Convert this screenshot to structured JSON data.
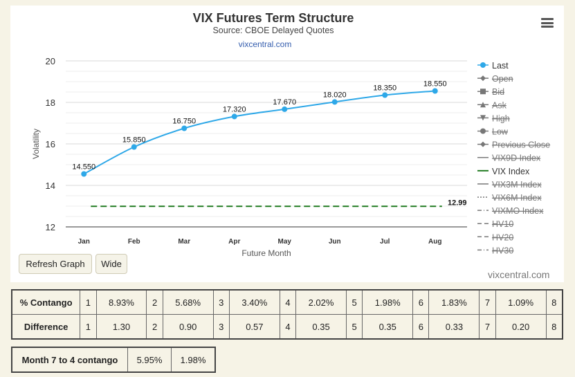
{
  "chart_data": {
    "type": "line",
    "title": "VIX Futures Term Structure",
    "subtitle": "Source: CBOE Delayed Quotes",
    "link": "vixcentral.com",
    "xlabel": "Future Month",
    "ylabel": "Volatility",
    "categories": [
      "Jan",
      "Feb",
      "Mar",
      "Apr",
      "May",
      "Jun",
      "Jul",
      "Aug"
    ],
    "ylim": [
      12,
      20
    ],
    "yticks": [
      "12",
      "14",
      "16",
      "18",
      "20"
    ],
    "series": [
      {
        "name": "Last",
        "values": [
          14.55,
          15.85,
          16.75,
          17.32,
          17.67,
          18.02,
          18.35,
          18.55
        ],
        "labels": [
          "14.550",
          "15.850",
          "16.750",
          "17.320",
          "17.670",
          "18.020",
          "18.350",
          "18.550"
        ],
        "color": "#2ea8e8"
      },
      {
        "name": "VIX Index",
        "value": 12.99,
        "label": "12.99",
        "color": "#1f7a1f",
        "dashed": true
      }
    ],
    "legend": {
      "position": "right",
      "items": [
        {
          "name": "Last",
          "symbol": "circle",
          "active": true
        },
        {
          "name": "Open",
          "symbol": "diamond",
          "active": false
        },
        {
          "name": "Bid",
          "symbol": "square",
          "active": false
        },
        {
          "name": "Ask",
          "symbol": "triangle",
          "active": false
        },
        {
          "name": "High",
          "symbol": "triangle-down",
          "active": false
        },
        {
          "name": "Low",
          "symbol": "circle",
          "active": false
        },
        {
          "name": "Previous Close",
          "symbol": "diamond",
          "active": false
        },
        {
          "name": "VIX9D Index",
          "symbol": "line",
          "active": false
        },
        {
          "name": "VIX Index",
          "symbol": "line-green",
          "active": true
        },
        {
          "name": "VIX3M Index",
          "symbol": "line",
          "active": false
        },
        {
          "name": "VIX6M Index",
          "symbol": "dotted",
          "active": false
        },
        {
          "name": "VIXMO Index",
          "symbol": "dashdot",
          "active": false
        },
        {
          "name": "HV10",
          "symbol": "dashed",
          "active": false
        },
        {
          "name": "HV20",
          "symbol": "dashed",
          "active": false
        },
        {
          "name": "HV30",
          "symbol": "dashdot",
          "active": false
        }
      ]
    },
    "grid": true
  },
  "controls": {
    "refresh_label": "Refresh Graph",
    "wide_label": "Wide",
    "menu_icon": "hamburger-menu-icon"
  },
  "credit": "vixcentral.com",
  "contango_table": {
    "rows": [
      {
        "label": "% Contango",
        "cells": [
          "1",
          "8.93%",
          "2",
          "5.68%",
          "3",
          "3.40%",
          "4",
          "2.02%",
          "5",
          "1.98%",
          "6",
          "1.83%",
          "7",
          "1.09%",
          "8"
        ]
      },
      {
        "label": "Difference",
        "cells": [
          "1",
          "1.30",
          "2",
          "0.90",
          "3",
          "0.57",
          "4",
          "0.35",
          "5",
          "0.35",
          "6",
          "0.33",
          "7",
          "0.20",
          "8"
        ]
      }
    ]
  },
  "month_table": {
    "label": "Month 7 to 4 contango",
    "values": [
      "5.95%",
      "1.98%"
    ]
  }
}
